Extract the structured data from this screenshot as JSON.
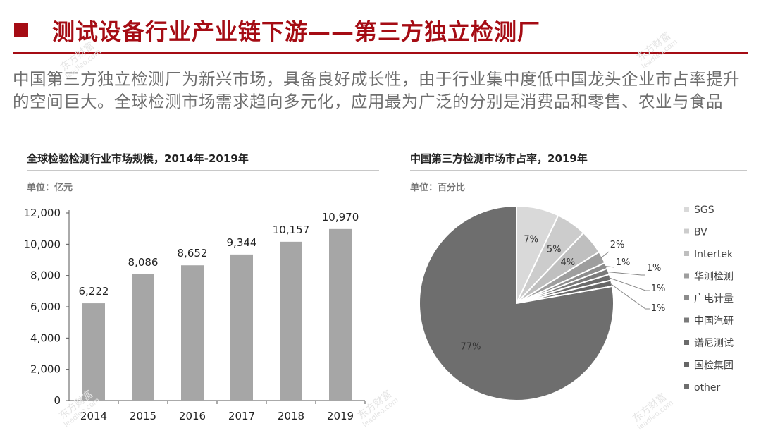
{
  "header": {
    "title": "测试设备行业产业链下游——第三方独立检测厂",
    "subtitle": "中国第三方独立检测厂为新兴市场，具备良好成长性，由于行业集中度低中国龙头企业市占率提升的空间巨大。全球检测市场需求趋向多元化，应用最为广泛的分别是消费品和零售、农业与食品"
  },
  "left_panel": {
    "title": "全球检验检测行业市场规模，2014年-2019年",
    "unit": "单位：亿元"
  },
  "right_panel": {
    "title": "中国第三方检测市场市占率，2019年",
    "unit": "单位：百分比"
  },
  "watermark": {
    "brand": "东方财富",
    "site": "leadleo.com"
  },
  "colors": {
    "brand_red": "#a50c14",
    "bar": "#a6a6a6",
    "axis": "#555555"
  },
  "chart_data": [
    {
      "type": "bar",
      "title": "全球检验检测行业市场规模，2014年-2019年",
      "unit": "单位：亿元",
      "categories": [
        "2014",
        "2015",
        "2016",
        "2017",
        "2018",
        "2019"
      ],
      "values": [
        6222,
        8086,
        8652,
        9344,
        10157,
        10970
      ],
      "value_labels": [
        "6,222",
        "8,086",
        "8,652",
        "9,344",
        "10,157",
        "10,970"
      ],
      "yticks": [
        0,
        2000,
        4000,
        6000,
        8000,
        10000,
        12000
      ],
      "ytick_labels": [
        "0",
        "2,000",
        "4,000",
        "6,000",
        "8,000",
        "10,000",
        "12,000"
      ],
      "ylim": [
        0,
        12000
      ],
      "grid": false,
      "legend": "none"
    },
    {
      "type": "pie",
      "title": "中国第三方检测市场市占率，2019年",
      "unit": "单位：百分比",
      "labels": [
        "SGS",
        "BV",
        "Intertek",
        "华测检测",
        "广电计量",
        "中国汽研",
        "谱尼测试",
        "国检集团",
        "other"
      ],
      "values": [
        7,
        5,
        4,
        2,
        1,
        1,
        1,
        1,
        77
      ],
      "value_labels": [
        "7%",
        "5%",
        "4%",
        "2%",
        "1%",
        "1%",
        "1%",
        "1%",
        "77%"
      ],
      "colors": [
        "#d9d9d9",
        "#cccccc",
        "#bfbfbf",
        "#9e9e9e",
        "#8c8c8c",
        "#7a7a7a",
        "#6b6b6b",
        "#666666",
        "#6e6e6e"
      ],
      "legend": "right"
    }
  ]
}
